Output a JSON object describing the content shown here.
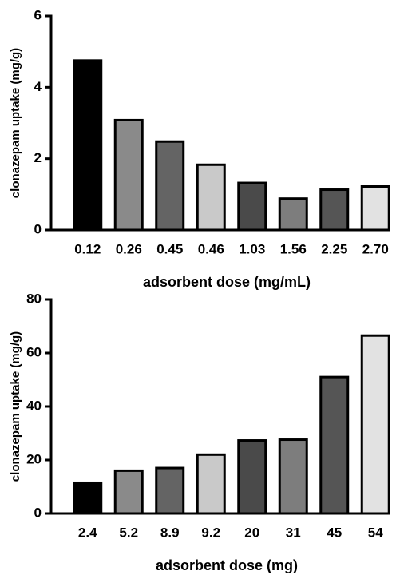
{
  "chart_data": [
    {
      "type": "bar",
      "ylabel": "clonazepam uptake (mg/g)",
      "xlabel": "adsorbent dose (mg/mL)",
      "categories": [
        "0.12",
        "0.26",
        "0.45",
        "0.46",
        "1.03",
        "1.56",
        "2.25",
        "2.70"
      ],
      "values": [
        4.75,
        3.08,
        2.48,
        1.83,
        1.32,
        0.88,
        1.13,
        1.22
      ],
      "colors": [
        "#000000",
        "#8a8a8a",
        "#646464",
        "#c9c9c9",
        "#4a4a4a",
        "#7d7d7d",
        "#555555",
        "#e2e2e2"
      ],
      "ylim": [
        0,
        6
      ],
      "yticks": [
        0,
        2,
        4,
        6
      ]
    },
    {
      "type": "bar",
      "ylabel": "clonazepam uptake (mg/g)",
      "xlabel": "adsorbent dose (mg)",
      "categories": [
        "2.4",
        "5.2",
        "8.9",
        "9.2",
        "20",
        "31",
        "45",
        "54"
      ],
      "values": [
        11.5,
        16,
        17,
        22,
        27.3,
        27.6,
        51,
        66.5
      ],
      "colors": [
        "#000000",
        "#8a8a8a",
        "#646464",
        "#c9c9c9",
        "#4a4a4a",
        "#7d7d7d",
        "#555555",
        "#e2e2e2"
      ],
      "ylim": [
        0,
        80
      ],
      "yticks": [
        0,
        20,
        40,
        60,
        80
      ]
    }
  ]
}
